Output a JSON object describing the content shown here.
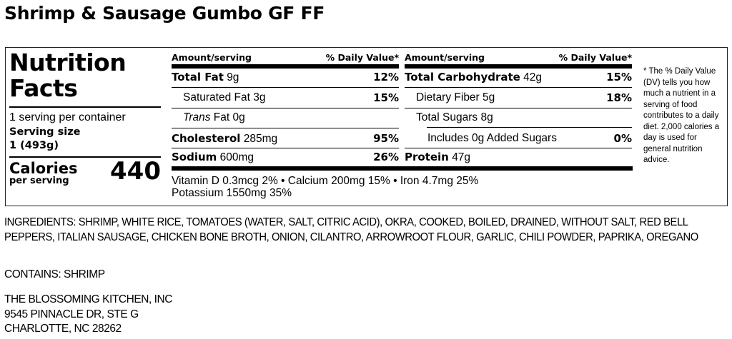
{
  "title": "Shrimp & Sausage Gumbo GF FF",
  "label": {
    "heading": "Nutrition Facts",
    "servings_per_container": "1 serving per container",
    "serving_size_label": "Serving size",
    "serving_size_value": "1 (493g)",
    "calories_label": "Calories",
    "calories_sub": "per serving",
    "calories_value": "440",
    "col_header_amount": "Amount/serving",
    "col_header_dv": "% Daily Value*",
    "left_rows": [
      {
        "name": "Total Fat",
        "amount": "9g",
        "dv": "12%"
      },
      {
        "name": "Saturated Fat",
        "amount": "3g",
        "dv": "15%"
      },
      {
        "name": "Trans",
        "name_suffix": "Fat",
        "amount": "0g",
        "dv": ""
      },
      {
        "name": "Cholesterol",
        "amount": "285mg",
        "dv": "95%"
      },
      {
        "name": "Sodium",
        "amount": "600mg",
        "dv": "26%"
      }
    ],
    "right_rows": [
      {
        "name": "Total Carbohydrate",
        "amount": "42g",
        "dv": "15%"
      },
      {
        "name": "Dietary Fiber",
        "amount": "5g",
        "dv": "18%"
      },
      {
        "name": "Total Sugars",
        "amount": "8g",
        "dv": ""
      },
      {
        "name": "Includes 0g Added Sugars",
        "amount": "",
        "dv": "0%"
      },
      {
        "name": "Protein",
        "amount": "47g",
        "dv": ""
      }
    ],
    "vitamins_line1": "Vitamin D 0.3mcg 2% • Calcium 200mg 15% • Iron 4.7mg 25%",
    "vitamins_line2": "Potassium 1550mg 35%",
    "footnote": "* The % Daily Value (DV) tells you how much a nutrient in a serving of food contributes to a daily diet. 2,000 calories a day is used for general nutrition advice."
  },
  "ingredients": "INGREDIENTS: SHRIMP, WHITE RICE, TOMATOES (WATER, SALT, CITRIC ACID), OKRA, COOKED, BOILED, DRAINED, WITHOUT SALT, RED BELL PEPPERS, ITALIAN SAUSAGE, CHICKEN BONE BROTH, ONION, CILANTRO, ARROWROOT FLOUR, GARLIC, CHILI POWDER, PAPRIKA, OREGANO",
  "contains": "CONTAINS: SHRIMP",
  "address": [
    "THE BLOSSOMING KITCHEN, INC",
    "9545 PINNACLE DR, STE G",
    "CHARLOTTE, NC 28262"
  ]
}
